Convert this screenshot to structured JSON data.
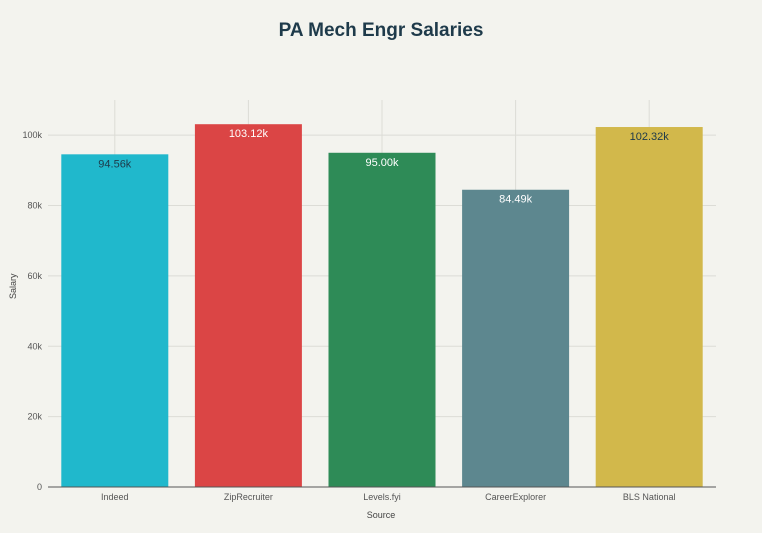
{
  "chart_data": {
    "type": "bar",
    "title": "PA Mech Engr Salaries",
    "xlabel": "Source",
    "ylabel": "Salary",
    "categories": [
      "Indeed",
      "ZipRecruiter",
      "Levels.fyi",
      "CareerExplorer",
      "BLS National"
    ],
    "values": [
      94560,
      103120,
      95000,
      84490,
      102320
    ],
    "data_labels": [
      "94.56k",
      "103.12k",
      "95.00k",
      "84.49k",
      "102.32k"
    ],
    "bar_colors": [
      "#20b8cc",
      "#db4545",
      "#2e8b57",
      "#5d878f",
      "#d2b84b"
    ],
    "label_dark": [
      true,
      false,
      false,
      false,
      true
    ],
    "ylim": [
      0,
      110000
    ],
    "yticks": [
      0,
      20000,
      40000,
      60000,
      80000,
      100000
    ],
    "ytick_labels": [
      "0",
      "20k",
      "40k",
      "60k",
      "80k",
      "100k"
    ],
    "grid": true,
    "legend": "none"
  }
}
